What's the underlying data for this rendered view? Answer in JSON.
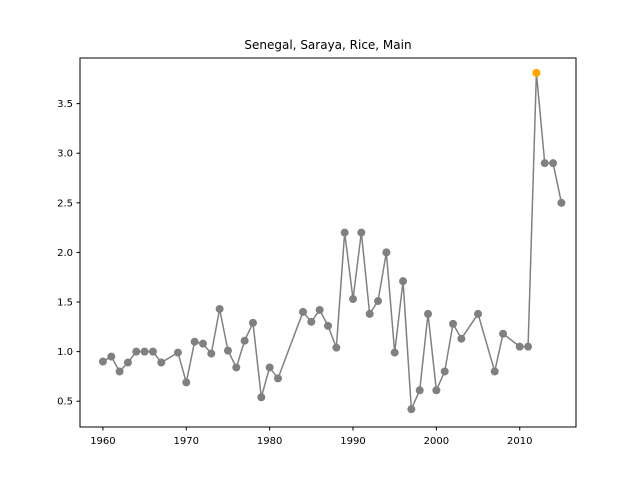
{
  "chart_data": {
    "type": "line",
    "title": "Senegal, Saraya, Rice, Main",
    "xlabel": "",
    "ylabel": "",
    "xlim": [
      1957.25,
      2016.75
    ],
    "ylim": [
      0.24,
      3.96
    ],
    "x_ticks": [
      1960,
      1970,
      1980,
      1990,
      2000,
      2010
    ],
    "y_ticks": [
      0.5,
      1.0,
      1.5,
      2.0,
      2.5,
      3.0,
      3.5
    ],
    "x_tick_labels": [
      "1960",
      "1970",
      "1980",
      "1990",
      "2000",
      "2010"
    ],
    "y_tick_labels": [
      "0.5",
      "1.0",
      "1.5",
      "2.0",
      "2.5",
      "3.0",
      "3.5"
    ],
    "grid": false,
    "line_color": "#808080",
    "highlight_color": "#FFA500",
    "highlight_x": 2012,
    "series": [
      {
        "name": "Main",
        "x": [
          1960,
          1961,
          1962,
          1963,
          1964,
          1965,
          1966,
          1967,
          1969,
          1970,
          1971,
          1972,
          1973,
          1974,
          1975,
          1976,
          1977,
          1978,
          1979,
          1980,
          1981,
          1984,
          1985,
          1986,
          1987,
          1988,
          1989,
          1990,
          1991,
          1992,
          1993,
          1994,
          1995,
          1996,
          1997,
          1998,
          1999,
          2000,
          2001,
          2002,
          2003,
          2005,
          2007,
          2008,
          2010,
          2011,
          2012,
          2013,
          2014,
          2015
        ],
        "values": [
          0.9,
          0.95,
          0.8,
          0.89,
          1.0,
          1.0,
          1.0,
          0.89,
          0.99,
          0.69,
          1.1,
          1.08,
          0.98,
          1.43,
          1.01,
          0.84,
          1.11,
          1.29,
          0.54,
          0.84,
          0.73,
          1.4,
          1.3,
          1.42,
          1.26,
          1.04,
          2.2,
          1.53,
          2.2,
          1.38,
          1.51,
          2.0,
          0.99,
          1.71,
          0.42,
          0.61,
          1.38,
          0.61,
          0.8,
          1.28,
          1.13,
          1.38,
          0.8,
          1.18,
          1.05,
          1.05,
          3.81,
          2.9,
          2.9,
          2.5
        ]
      }
    ]
  }
}
